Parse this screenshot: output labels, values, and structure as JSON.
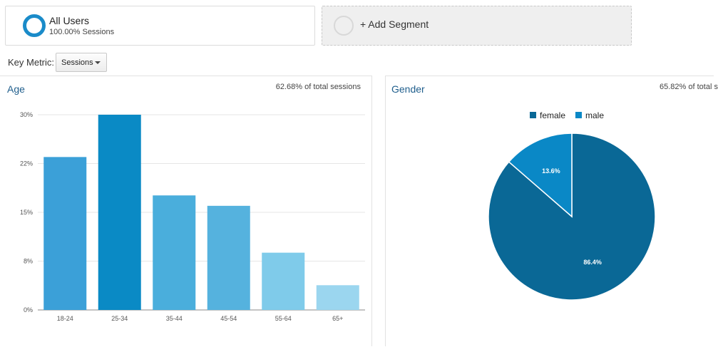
{
  "segments": {
    "current": {
      "name": "All Users",
      "sub": "100.00% Sessions"
    },
    "add_label": "+ Add Segment"
  },
  "key_metric": {
    "label": "Key Metric:",
    "value": "Sessions"
  },
  "age_panel": {
    "title": "Age",
    "note": "62.68% of total sessions"
  },
  "gender_panel": {
    "title": "Gender",
    "note": "65.82% of total s"
  },
  "colors": {
    "accent": "#1a8bc9",
    "age_bars": [
      "#3ba0d8",
      "#0a8ac5",
      "#4aaedc",
      "#55b2de",
      "#7fcbea",
      "#9bd6ef"
    ],
    "female": "#0a6896",
    "male": "#0a88c6"
  },
  "chart_data": [
    {
      "type": "bar",
      "title": "Age",
      "categories": [
        "18-24",
        "25-34",
        "35-44",
        "45-54",
        "55-64",
        "65+"
      ],
      "values": [
        23.5,
        30.0,
        17.6,
        16.0,
        8.8,
        3.8
      ],
      "yticks": [
        "0%",
        "8%",
        "15%",
        "22%",
        "30%"
      ],
      "ylim": [
        0,
        30
      ],
      "grid": true
    },
    {
      "type": "pie",
      "title": "Gender",
      "labels": [
        "female",
        "male"
      ],
      "values": [
        86.4,
        13.6
      ],
      "slice_labels": [
        "86.4%",
        "13.6%"
      ],
      "legend_position": "top"
    }
  ]
}
